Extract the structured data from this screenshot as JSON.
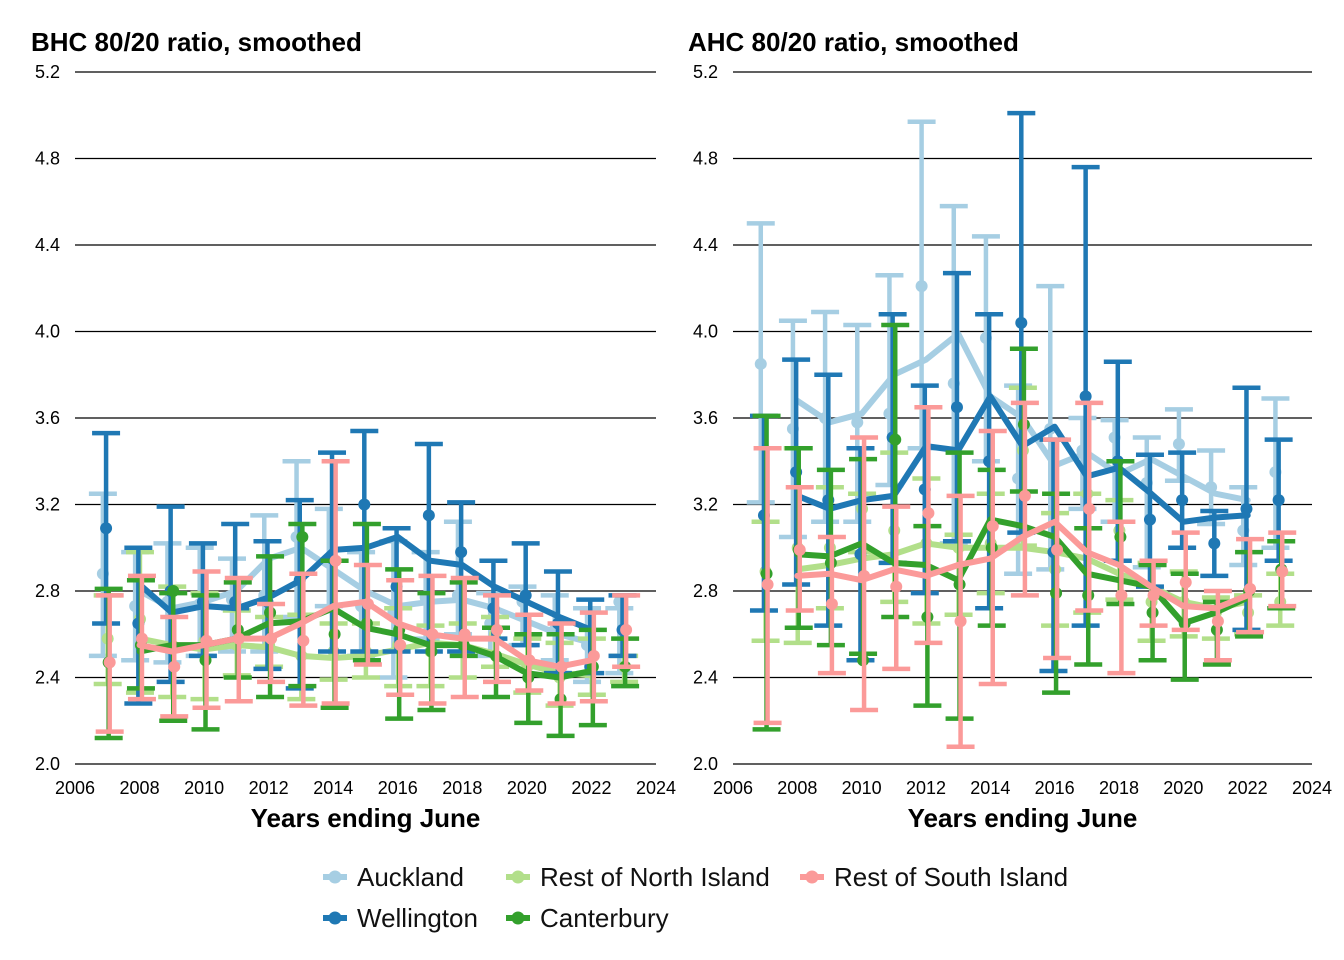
{
  "legend": {
    "placement": "bottom",
    "items": [
      {
        "name": "Auckland",
        "color": "#a6cee3"
      },
      {
        "name": "Rest of North Island",
        "color": "#b2df8a"
      },
      {
        "name": "Rest of South Island",
        "color": "#fb9a99"
      },
      {
        "name": "Wellington",
        "color": "#1f78b4"
      },
      {
        "name": "Canterbury",
        "color": "#33a02c"
      }
    ]
  },
  "chart_data": [
    {
      "type": "line",
      "title": "BHC 80/20 ratio, smoothed",
      "xlabel": "Years ending June",
      "ylabel": "",
      "xlim": [
        2006,
        2024
      ],
      "ylim": [
        2.0,
        5.2
      ],
      "xticks": [
        "2006",
        "2008",
        "2010",
        "2012",
        "2014",
        "2016",
        "2018",
        "2020",
        "2022",
        "2024"
      ],
      "yticks": [
        "2.0",
        "2.4",
        "2.8",
        "3.2",
        "3.6",
        "4.0",
        "4.4",
        "4.8",
        "5.2"
      ],
      "grid": "horizontal",
      "x": [
        2007,
        2008,
        2009,
        2010,
        2011,
        2012,
        2013,
        2014,
        2015,
        2016,
        2017,
        2018,
        2019,
        2020,
        2021,
        2022,
        2023
      ],
      "series": [
        {
          "name": "Auckland",
          "color": "#a6cee3",
          "points": [
            2.88,
            2.73,
            2.75,
            2.74,
            2.76,
            2.78,
            3.05,
            2.95,
            2.73,
            2.7,
            2.77,
            2.78,
            2.65,
            2.75,
            2.62,
            2.55,
            2.75
          ],
          "lower": [
            2.5,
            2.48,
            2.47,
            2.5,
            2.52,
            2.52,
            2.68,
            2.73,
            2.5,
            2.4,
            2.58,
            2.6,
            2.5,
            2.55,
            2.48,
            2.38,
            2.42
          ],
          "upper": [
            3.25,
            2.98,
            3.02,
            3.0,
            2.95,
            3.15,
            3.4,
            3.18,
            2.98,
            3.03,
            2.98,
            3.12,
            2.79,
            2.82,
            2.78,
            2.72,
            2.72
          ],
          "smoothed": [
            null,
            2.8,
            2.72,
            2.75,
            2.8,
            2.95,
            3.0,
            2.9,
            2.8,
            2.73,
            2.75,
            2.76,
            2.72,
            2.66,
            2.6,
            2.56,
            null
          ]
        },
        {
          "name": "Wellington",
          "color": "#1f78b4",
          "points": [
            3.09,
            2.65,
            2.8,
            2.75,
            2.75,
            2.75,
            2.85,
            2.95,
            3.2,
            2.82,
            3.15,
            2.98,
            2.72,
            2.78,
            2.65,
            2.45,
            2.62
          ],
          "lower": [
            2.65,
            2.28,
            2.38,
            2.5,
            2.72,
            2.44,
            2.35,
            2.52,
            2.52,
            2.52,
            2.52,
            2.52,
            2.58,
            2.55,
            2.42,
            2.42,
            2.5
          ],
          "upper": [
            3.53,
            3.0,
            3.19,
            3.02,
            3.11,
            3.03,
            3.22,
            3.44,
            3.54,
            3.09,
            3.48,
            3.21,
            2.94,
            3.02,
            2.89,
            2.76,
            2.78
          ],
          "smoothed": [
            null,
            2.83,
            2.7,
            2.73,
            2.72,
            2.77,
            2.85,
            2.99,
            3.0,
            3.05,
            2.94,
            2.92,
            2.82,
            2.75,
            2.68,
            2.62,
            null
          ]
        },
        {
          "name": "Rest of North Island",
          "color": "#b2df8a",
          "points": [
            2.58,
            2.67,
            2.55,
            2.57,
            2.55,
            2.55,
            2.5,
            2.52,
            2.52,
            2.55,
            2.52,
            2.55,
            2.6,
            2.45,
            2.4,
            2.43,
            2.45
          ],
          "lower": [
            2.37,
            2.33,
            2.31,
            2.3,
            2.41,
            2.45,
            2.3,
            2.39,
            2.4,
            2.36,
            2.36,
            2.4,
            2.45,
            2.33,
            2.27,
            2.32,
            2.38
          ],
          "upper": [
            2.78,
            2.98,
            2.82,
            2.79,
            2.71,
            2.68,
            2.69,
            2.65,
            2.65,
            2.72,
            2.64,
            2.65,
            2.68,
            2.58,
            2.56,
            2.58,
            2.5
          ],
          "smoothed": [
            null,
            2.58,
            2.55,
            2.53,
            2.55,
            2.54,
            2.5,
            2.49,
            2.5,
            2.53,
            2.56,
            2.55,
            2.51,
            2.46,
            2.42,
            2.41,
            null
          ]
        },
        {
          "name": "Canterbury",
          "color": "#33a02c",
          "points": [
            2.47,
            2.55,
            2.8,
            2.48,
            2.62,
            2.7,
            3.05,
            2.6,
            2.65,
            2.62,
            2.52,
            2.55,
            2.5,
            2.4,
            2.3,
            2.45,
            2.45
          ],
          "lower": [
            2.12,
            2.35,
            2.2,
            2.16,
            2.4,
            2.31,
            2.36,
            2.26,
            2.48,
            2.21,
            2.25,
            2.5,
            2.31,
            2.19,
            2.13,
            2.18,
            2.36
          ],
          "upper": [
            2.81,
            2.85,
            2.79,
            2.78,
            2.84,
            2.96,
            3.11,
            2.94,
            3.11,
            2.9,
            2.79,
            2.84,
            2.63,
            2.6,
            2.6,
            2.62,
            2.58
          ],
          "smoothed": [
            null,
            2.52,
            2.55,
            2.55,
            2.58,
            2.65,
            2.66,
            2.72,
            2.63,
            2.6,
            2.55,
            2.55,
            2.5,
            2.42,
            2.4,
            2.43,
            null
          ]
        },
        {
          "name": "Rest of South Island",
          "color": "#fb9a99",
          "points": [
            2.47,
            2.58,
            2.45,
            2.57,
            2.58,
            2.58,
            2.57,
            2.94,
            2.74,
            2.55,
            2.6,
            2.6,
            2.62,
            2.48,
            2.45,
            2.5,
            2.62
          ],
          "lower": [
            2.15,
            2.3,
            2.22,
            2.26,
            2.29,
            2.38,
            2.27,
            2.28,
            2.46,
            2.32,
            2.28,
            2.31,
            2.38,
            2.34,
            2.28,
            2.29,
            2.45
          ],
          "upper": [
            2.78,
            2.87,
            2.68,
            2.89,
            2.86,
            2.74,
            2.88,
            3.4,
            2.92,
            2.85,
            2.87,
            2.86,
            2.78,
            2.69,
            2.65,
            2.7,
            2.78
          ],
          "smoothed": [
            null,
            2.55,
            2.52,
            2.55,
            2.58,
            2.58,
            2.65,
            2.73,
            2.75,
            2.65,
            2.6,
            2.58,
            2.58,
            2.48,
            2.45,
            2.48,
            null
          ]
        }
      ]
    },
    {
      "type": "line",
      "title": "AHC 80/20 ratio, smoothed",
      "xlabel": "Years ending June",
      "ylabel": "",
      "xlim": [
        2006,
        2024
      ],
      "ylim": [
        2.0,
        5.2
      ],
      "xticks": [
        "2006",
        "2008",
        "2010",
        "2012",
        "2014",
        "2016",
        "2018",
        "2020",
        "2022",
        "2024"
      ],
      "yticks": [
        "2.0",
        "2.4",
        "2.8",
        "3.2",
        "3.6",
        "4.0",
        "4.4",
        "4.8",
        "5.2"
      ],
      "grid": "horizontal",
      "x": [
        2007,
        2008,
        2009,
        2010,
        2011,
        2012,
        2013,
        2014,
        2015,
        2016,
        2017,
        2018,
        2019,
        2020,
        2021,
        2022,
        2023
      ],
      "series": [
        {
          "name": "Auckland",
          "color": "#a6cee3",
          "points": [
            3.85,
            3.55,
            3.6,
            3.58,
            3.62,
            4.21,
            3.76,
            3.97,
            3.32,
            3.55,
            3.45,
            3.51,
            3.3,
            3.48,
            3.28,
            3.08,
            3.35
          ],
          "lower": [
            3.21,
            3.05,
            3.12,
            3.12,
            3.29,
            3.46,
            3.02,
            3.4,
            2.88,
            2.9,
            3.18,
            3.12,
            2.91,
            3.31,
            3.11,
            2.92,
            3.0
          ],
          "upper": [
            4.5,
            4.05,
            4.09,
            4.03,
            4.26,
            4.97,
            4.58,
            4.44,
            3.75,
            4.21,
            3.6,
            3.59,
            3.51,
            3.64,
            3.45,
            3.28,
            3.69
          ],
          "smoothed": [
            null,
            3.68,
            3.58,
            3.62,
            3.8,
            3.87,
            3.99,
            3.7,
            3.6,
            3.38,
            3.44,
            3.34,
            3.41,
            3.33,
            3.25,
            3.22,
            null
          ]
        },
        {
          "name": "Wellington",
          "color": "#1f78b4",
          "points": [
            3.15,
            3.35,
            3.22,
            2.97,
            3.51,
            3.27,
            3.65,
            3.4,
            4.04,
            2.98,
            3.7,
            3.4,
            3.13,
            3.22,
            3.02,
            3.18,
            3.22
          ],
          "lower": [
            2.71,
            2.83,
            2.64,
            2.48,
            2.93,
            2.79,
            3.03,
            2.72,
            3.07,
            2.43,
            2.64,
            2.94,
            2.82,
            3.0,
            2.87,
            2.62,
            2.94
          ],
          "upper": [
            3.61,
            3.87,
            3.8,
            3.46,
            4.08,
            3.75,
            4.27,
            4.08,
            5.01,
            3.5,
            4.76,
            3.86,
            3.43,
            3.44,
            3.17,
            3.74,
            3.5
          ],
          "smoothed": [
            null,
            3.24,
            3.18,
            3.22,
            3.24,
            3.47,
            3.45,
            3.7,
            3.47,
            3.56,
            3.33,
            3.37,
            3.25,
            3.12,
            3.14,
            3.15,
            null
          ]
        },
        {
          "name": "Rest of North Island",
          "color": "#b2df8a",
          "points": [
            2.89,
            3.0,
            3.0,
            3.18,
            3.08,
            3.02,
            3.0,
            3.02,
            3.45,
            2.9,
            3.25,
            3.08,
            2.75,
            2.75,
            2.7,
            2.7,
            2.75
          ],
          "lower": [
            2.57,
            2.56,
            2.72,
            2.98,
            2.75,
            2.65,
            2.69,
            2.79,
            3.01,
            2.64,
            2.7,
            2.76,
            2.57,
            2.59,
            2.58,
            2.6,
            2.64
          ],
          "upper": [
            3.12,
            3.46,
            3.28,
            3.25,
            3.44,
            3.32,
            3.06,
            3.25,
            3.74,
            3.16,
            3.25,
            3.22,
            2.93,
            2.89,
            2.77,
            2.78,
            2.88
          ],
          "smoothed": [
            null,
            2.9,
            2.92,
            2.95,
            2.97,
            3.02,
            3.0,
            3.0,
            3.0,
            2.98,
            2.95,
            2.88,
            2.82,
            2.75,
            2.72,
            2.75,
            null
          ]
        },
        {
          "name": "Canterbury",
          "color": "#33a02c",
          "points": [
            2.88,
            2.99,
            2.93,
            2.48,
            3.5,
            2.68,
            2.83,
            3.0,
            3.57,
            2.79,
            2.78,
            3.05,
            2.7,
            2.65,
            2.62,
            2.8,
            2.9
          ],
          "lower": [
            2.16,
            2.63,
            2.55,
            2.51,
            2.68,
            2.27,
            2.21,
            2.64,
            3.26,
            2.33,
            2.46,
            2.74,
            2.48,
            2.39,
            2.46,
            2.59,
            2.72
          ],
          "upper": [
            3.61,
            3.46,
            3.36,
            3.41,
            4.03,
            3.1,
            3.44,
            3.36,
            3.92,
            3.25,
            3.09,
            3.4,
            2.92,
            2.88,
            2.75,
            2.98,
            3.03
          ],
          "smoothed": [
            null,
            2.97,
            2.96,
            3.02,
            2.93,
            2.92,
            2.85,
            3.13,
            3.1,
            3.05,
            2.88,
            2.85,
            2.82,
            2.65,
            2.7,
            2.77,
            null
          ]
        },
        {
          "name": "Rest of South Island",
          "color": "#fb9a99",
          "points": [
            2.83,
            2.99,
            2.74,
            2.87,
            2.82,
            3.16,
            2.66,
            3.1,
            3.24,
            2.99,
            3.18,
            2.78,
            2.78,
            2.84,
            2.66,
            2.81,
            2.89
          ],
          "lower": [
            2.19,
            2.71,
            2.42,
            2.25,
            2.44,
            2.56,
            2.08,
            2.37,
            2.78,
            2.49,
            2.71,
            2.42,
            2.64,
            2.62,
            2.48,
            2.61,
            2.73
          ],
          "upper": [
            3.46,
            3.28,
            3.05,
            3.51,
            3.19,
            3.65,
            3.24,
            3.54,
            3.67,
            3.5,
            3.67,
            3.12,
            2.94,
            3.07,
            2.8,
            3.04,
            3.07
          ],
          "smoothed": [
            null,
            2.87,
            2.88,
            2.85,
            2.9,
            2.87,
            2.92,
            2.95,
            3.05,
            3.12,
            2.98,
            2.92,
            2.82,
            2.73,
            2.72,
            2.78,
            null
          ]
        }
      ]
    }
  ]
}
